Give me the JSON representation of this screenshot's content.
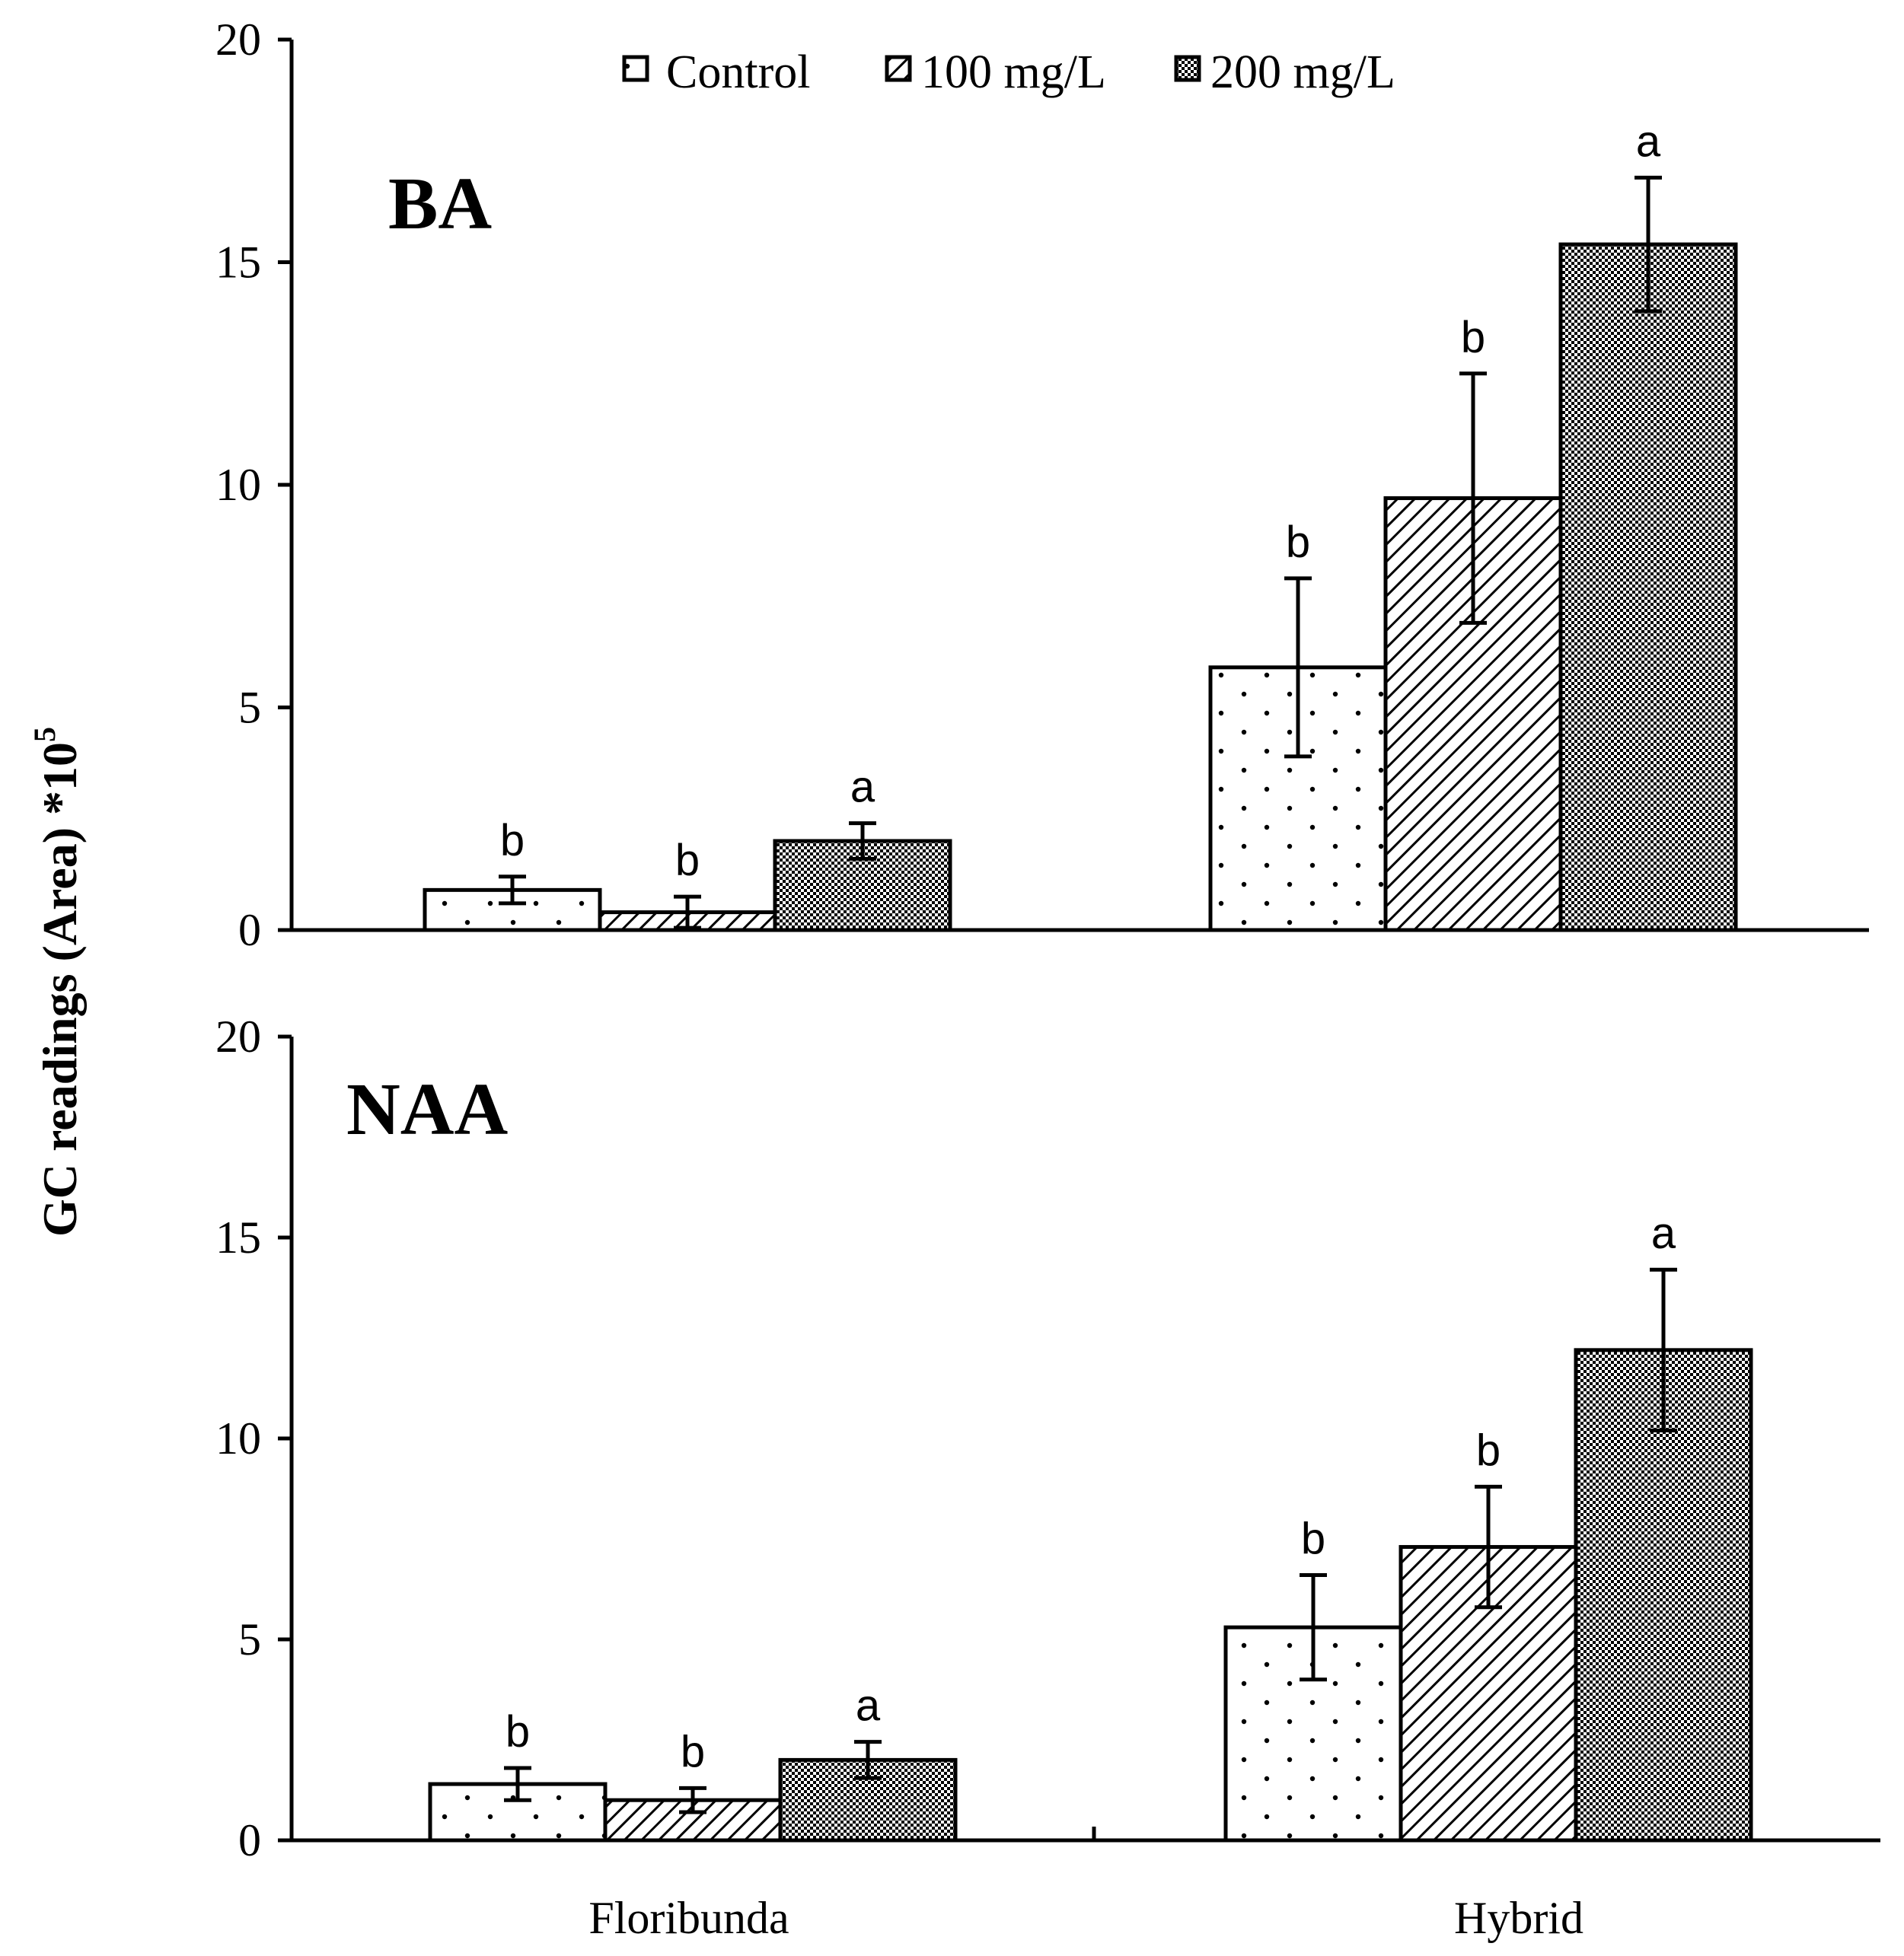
{
  "chart_data": {
    "type": "bar",
    "ylabel": "GC readings (Area) *10",
    "ylabel_superscript": "5",
    "categories": [
      "Floribunda",
      "Hybrid"
    ],
    "legend": [
      {
        "name": "Control",
        "pattern": "dots"
      },
      {
        "name": "100 mg/L",
        "pattern": "hatch"
      },
      {
        "name": "200 mg/L",
        "pattern": "checker"
      }
    ],
    "yticks": [
      "0",
      "5",
      "10",
      "15",
      "20"
    ],
    "panels": [
      {
        "title": "BA",
        "ylim": [
          0,
          20
        ],
        "series": [
          {
            "name": "Control",
            "values": [
              0.9,
              5.9
            ],
            "errors": [
              0.3,
              2.0
            ],
            "labels": [
              "b",
              "b"
            ]
          },
          {
            "name": "100 mg/L",
            "values": [
              0.4,
              9.7
            ],
            "errors": [
              0.35,
              2.8
            ],
            "labels": [
              "b",
              "b"
            ]
          },
          {
            "name": "200 mg/L",
            "values": [
              2.0,
              15.4
            ],
            "errors": [
              0.4,
              1.5
            ],
            "labels": [
              "a",
              "a"
            ]
          }
        ]
      },
      {
        "title": "NAA",
        "ylim": [
          0,
          20
        ],
        "series": [
          {
            "name": "Control",
            "values": [
              1.4,
              5.3
            ],
            "errors": [
              0.4,
              1.3
            ],
            "labels": [
              "b",
              "b"
            ]
          },
          {
            "name": "100 mg/L",
            "values": [
              1.0,
              7.3
            ],
            "errors": [
              0.3,
              1.5
            ],
            "labels": [
              "b",
              "b"
            ]
          },
          {
            "name": "200 mg/L",
            "values": [
              2.0,
              12.2
            ],
            "errors": [
              0.45,
              2.0
            ],
            "labels": [
              "a",
              "a"
            ]
          }
        ]
      }
    ]
  }
}
